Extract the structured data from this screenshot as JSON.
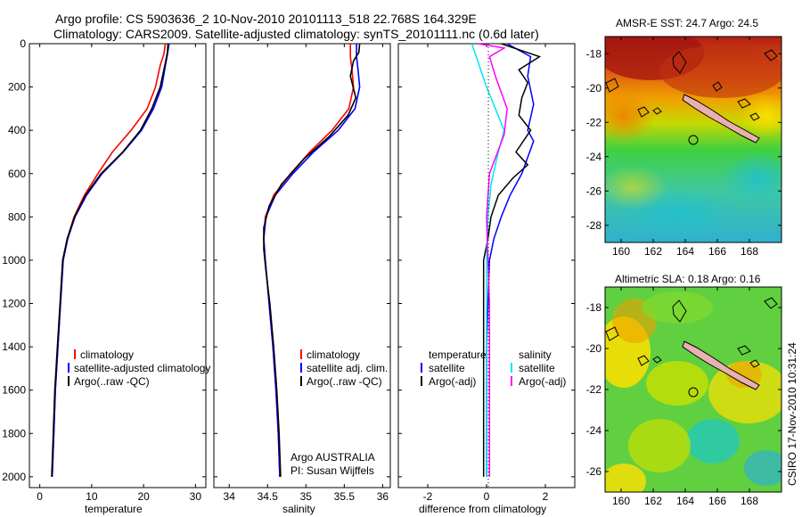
{
  "header": {
    "line1": "Argo profile: CS 5903636_2 10-Nov-2010 20101113_518 22.768S 164.329E",
    "line2": "Climatology: CARS2009. Satellite-adjusted climatology: synTS_20101111.nc (0.6d later)"
  },
  "credit": "CSIRO 17-Nov-2010 10:31:24",
  "colors": {
    "climatology": "#ff0000",
    "satellite": "#0000ff",
    "argo": "#000000",
    "sat_salinity": "#00e5ee",
    "argo_salinity": "#ff00ff"
  },
  "chart_data": [
    {
      "type": "line",
      "name": "temperature-profile",
      "xlabel": "temperature",
      "xlim": [
        -2,
        32
      ],
      "ylim": [
        2050,
        0
      ],
      "xticks": [
        "0",
        "10",
        "20",
        "30"
      ],
      "yticks": [
        "0",
        "200",
        "400",
        "600",
        "800",
        "1000",
        "1200",
        "1400",
        "1600",
        "1800",
        "2000"
      ],
      "legend": [
        "climatology",
        "satellite-adjusted climatology",
        "Argo(..raw -QC)"
      ],
      "series": [
        {
          "name": "climatology",
          "color": "#ff0000",
          "width": 1.6,
          "points": [
            [
              24.2,
              0
            ],
            [
              23.9,
              50
            ],
            [
              23.2,
              100
            ],
            [
              22.3,
              200
            ],
            [
              20.7,
              300
            ],
            [
              17.6,
              400
            ],
            [
              14.0,
              500
            ],
            [
              11.2,
              600
            ],
            [
              8.6,
              700
            ],
            [
              6.6,
              800
            ],
            [
              5.3,
              900
            ],
            [
              4.5,
              1000
            ],
            [
              4.0,
              1200
            ],
            [
              3.5,
              1400
            ],
            [
              3.0,
              1600
            ],
            [
              2.7,
              1800
            ],
            [
              2.4,
              2000
            ]
          ]
        },
        {
          "name": "satellite-adjusted climatology",
          "color": "#0000ff",
          "width": 1.6,
          "points": [
            [
              24.9,
              0
            ],
            [
              24.6,
              50
            ],
            [
              24.2,
              100
            ],
            [
              23.5,
              200
            ],
            [
              21.9,
              300
            ],
            [
              19.6,
              400
            ],
            [
              16.1,
              500
            ],
            [
              12.0,
              600
            ],
            [
              9.0,
              700
            ],
            [
              6.8,
              800
            ],
            [
              5.4,
              900
            ],
            [
              4.5,
              1000
            ],
            [
              4.0,
              1200
            ],
            [
              3.5,
              1400
            ],
            [
              3.0,
              1600
            ],
            [
              2.7,
              1800
            ],
            [
              2.4,
              2000
            ]
          ]
        },
        {
          "name": "Argo(..raw -QC)",
          "color": "#000000",
          "width": 1.6,
          "points": [
            [
              24.7,
              0
            ],
            [
              24.6,
              40
            ],
            [
              24.1,
              100
            ],
            [
              23.2,
              200
            ],
            [
              21.6,
              300
            ],
            [
              19.4,
              400
            ],
            [
              16.0,
              500
            ],
            [
              11.8,
              600
            ],
            [
              8.8,
              700
            ],
            [
              6.7,
              800
            ],
            [
              5.3,
              900
            ],
            [
              4.4,
              1000
            ],
            [
              3.9,
              1200
            ],
            [
              3.4,
              1400
            ],
            [
              2.9,
              1600
            ],
            [
              2.6,
              1800
            ],
            [
              2.3,
              2000
            ]
          ]
        }
      ]
    },
    {
      "type": "line",
      "name": "salinity-profile",
      "xlabel": "salinity",
      "xlim": [
        33.8,
        36.1
      ],
      "ylim": [
        2050,
        0
      ],
      "xticks": [
        "34",
        "34.5",
        "35",
        "35.5",
        "36"
      ],
      "legend": [
        "climatology",
        "satellite adj. clim.",
        "Argo(..raw -QC)"
      ],
      "annotation": [
        "Argo AUSTRALIA",
        "PI: Susan Wijffels"
      ],
      "series": [
        {
          "name": "climatology",
          "color": "#ff0000",
          "width": 1.6,
          "points": [
            [
              35.58,
              0
            ],
            [
              35.58,
              60
            ],
            [
              35.6,
              120
            ],
            [
              35.62,
              200
            ],
            [
              35.56,
              300
            ],
            [
              35.34,
              400
            ],
            [
              35.05,
              500
            ],
            [
              34.8,
              600
            ],
            [
              34.58,
              700
            ],
            [
              34.47,
              800
            ],
            [
              34.45,
              900
            ],
            [
              34.47,
              1000
            ],
            [
              34.52,
              1200
            ],
            [
              34.57,
              1400
            ],
            [
              34.61,
              1600
            ],
            [
              34.64,
              1800
            ],
            [
              34.66,
              2000
            ]
          ]
        },
        {
          "name": "satellite adj. clim.",
          "color": "#0000ff",
          "width": 1.6,
          "points": [
            [
              35.66,
              0
            ],
            [
              35.66,
              60
            ],
            [
              35.68,
              120
            ],
            [
              35.7,
              200
            ],
            [
              35.64,
              300
            ],
            [
              35.42,
              400
            ],
            [
              35.1,
              500
            ],
            [
              34.83,
              600
            ],
            [
              34.6,
              700
            ],
            [
              34.48,
              800
            ],
            [
              34.45,
              900
            ],
            [
              34.47,
              1000
            ],
            [
              34.52,
              1200
            ],
            [
              34.57,
              1400
            ],
            [
              34.61,
              1600
            ],
            [
              34.64,
              1800
            ],
            [
              34.66,
              2000
            ]
          ]
        },
        {
          "name": "Argo(..raw -QC)",
          "color": "#000000",
          "width": 1.6,
          "points": [
            [
              35.7,
              0
            ],
            [
              35.69,
              40
            ],
            [
              35.62,
              80
            ],
            [
              35.58,
              150
            ],
            [
              35.65,
              250
            ],
            [
              35.55,
              330
            ],
            [
              35.3,
              430
            ],
            [
              34.98,
              530
            ],
            [
              34.68,
              650
            ],
            [
              34.52,
              750
            ],
            [
              34.45,
              850
            ],
            [
              34.45,
              950
            ],
            [
              34.48,
              1050
            ],
            [
              34.53,
              1200
            ],
            [
              34.58,
              1400
            ],
            [
              34.62,
              1600
            ],
            [
              34.65,
              1800
            ],
            [
              34.67,
              2000
            ]
          ]
        }
      ]
    },
    {
      "type": "line",
      "name": "difference-profile",
      "xlabel": "difference from climatology",
      "xlim": [
        -3,
        3
      ],
      "ylim": [
        2050,
        0
      ],
      "xticks": [
        "-2",
        "0",
        "2"
      ],
      "legend_temperature": [
        "temperature",
        "satellite",
        "Argo(-adj)"
      ],
      "legend_salinity": [
        "salinity",
        "satellite",
        "Argo(-adj)"
      ],
      "series": [
        {
          "name": "temperature satellite",
          "color": "#0000ff",
          "width": 1.5,
          "points": [
            [
              0.7,
              0
            ],
            [
              1.5,
              60
            ],
            [
              1.4,
              150
            ],
            [
              1.6,
              280
            ],
            [
              1.4,
              400
            ],
            [
              1.6,
              450
            ],
            [
              1.2,
              600
            ],
            [
              0.8,
              700
            ],
            [
              0.5,
              800
            ],
            [
              0.25,
              900
            ],
            [
              0.1,
              1000
            ],
            [
              0.05,
              1200
            ],
            [
              0.0,
              1400
            ],
            [
              0.0,
              1600
            ],
            [
              0.0,
              1800
            ],
            [
              0.0,
              2000
            ]
          ]
        },
        {
          "name": "temperature Argo(-adj)",
          "color": "#000000",
          "width": 1.5,
          "points": [
            [
              0.5,
              0
            ],
            [
              1.8,
              60
            ],
            [
              1.1,
              120
            ],
            [
              1.4,
              180
            ],
            [
              1.2,
              250
            ],
            [
              1.1,
              330
            ],
            [
              1.5,
              400
            ],
            [
              1.0,
              500
            ],
            [
              1.4,
              560
            ],
            [
              0.9,
              620
            ],
            [
              0.4,
              700
            ],
            [
              0.15,
              800
            ],
            [
              0.05,
              900
            ],
            [
              -0.1,
              1000
            ],
            [
              -0.1,
              1200
            ],
            [
              -0.1,
              1400
            ],
            [
              -0.1,
              1600
            ],
            [
              -0.1,
              1800
            ],
            [
              -0.1,
              2000
            ]
          ]
        },
        {
          "name": "salinity satellite",
          "color": "#00e5ee",
          "width": 1.5,
          "points": [
            [
              -0.5,
              0
            ],
            [
              -0.3,
              80
            ],
            [
              0.0,
              200
            ],
            [
              0.3,
              300
            ],
            [
              0.6,
              400
            ],
            [
              0.4,
              500
            ],
            [
              0.15,
              650
            ],
            [
              0.05,
              800
            ],
            [
              0.0,
              1000
            ],
            [
              0.0,
              1200
            ],
            [
              0.0,
              1500
            ],
            [
              0.0,
              1800
            ],
            [
              0.0,
              2000
            ]
          ]
        },
        {
          "name": "salinity Argo(-adj)",
          "color": "#ff00ff",
          "width": 1.5,
          "points": [
            [
              -0.3,
              0
            ],
            [
              0.6,
              20
            ],
            [
              0.1,
              60
            ],
            [
              0.3,
              150
            ],
            [
              0.7,
              300
            ],
            [
              0.6,
              420
            ],
            [
              0.1,
              600
            ],
            [
              0.0,
              800
            ],
            [
              0.05,
              1000
            ],
            [
              0.1,
              1200
            ],
            [
              0.1,
              1500
            ],
            [
              0.1,
              1800
            ],
            [
              0.1,
              2000
            ]
          ]
        }
      ]
    },
    {
      "type": "heatmap",
      "name": "amsre-sst-map",
      "title": "AMSR-E SST: 24.7 Argo: 24.5",
      "xticks": [
        "160",
        "162",
        "164",
        "166",
        "168"
      ],
      "yticks": [
        "-18",
        "-20",
        "-22",
        "-24",
        "-26",
        "-28"
      ],
      "xlim": [
        159,
        170
      ],
      "ylim": [
        -29,
        -17
      ],
      "argo_position": [
        164.329,
        -22.768
      ]
    },
    {
      "type": "heatmap",
      "name": "altimetric-sla-map",
      "title": "Altimetric SLA: 0.18 Argo: 0.16",
      "xticks": [
        "160",
        "162",
        "164",
        "166",
        "168"
      ],
      "yticks": [
        "-18",
        "-20",
        "-22",
        "-24",
        "-26"
      ],
      "xlim": [
        159,
        170
      ],
      "ylim": [
        -27,
        -17
      ],
      "argo_position": [
        164.329,
        -22.768
      ]
    }
  ]
}
